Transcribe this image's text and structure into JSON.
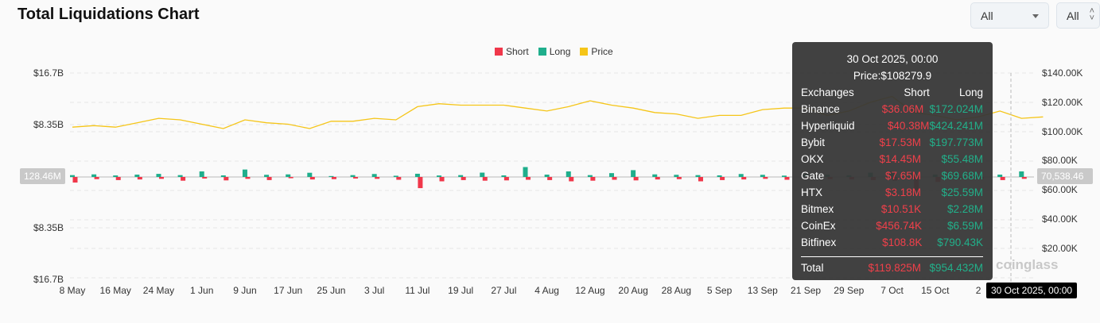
{
  "header": {
    "title": "Total Liquidations Chart",
    "select1": "All",
    "select2": "All"
  },
  "chart_data": {
    "type": "bar",
    "title": "Total Liquidations Chart",
    "legend": [
      "Short",
      "Long",
      "Price"
    ],
    "legend_placement": "top-center",
    "colors": {
      "short": "#f0374a",
      "long": "#1fae8c",
      "price": "#f5c518"
    },
    "left_axis_ticks": [
      "$16.7B",
      "$8.35B",
      "$8.35B",
      "$16.7B"
    ],
    "right_axis_ticks": [
      "$140.00K",
      "$120.00K",
      "$100.00K",
      "$80.00K",
      "$60.00K",
      "$40.00K",
      "$20.00K"
    ],
    "right_axis_range_k": [
      0,
      140
    ],
    "x_ticks": [
      "8 May",
      "16 May",
      "24 May",
      "1 Jun",
      "9 Jun",
      "17 Jun",
      "25 Jun",
      "3 Jul",
      "11 Jul",
      "19 Jul",
      "27 Jul",
      "4 Aug",
      "12 Aug",
      "20 Aug",
      "28 Aug",
      "5 Sep",
      "13 Sep",
      "21 Sep",
      "29 Sep",
      "7 Oct",
      "15 Oct",
      "2"
    ],
    "x_interval_days": 4,
    "price_k": [
      103,
      104,
      103,
      106,
      109,
      108,
      105,
      102,
      108,
      106,
      105,
      102,
      107,
      107,
      109,
      108,
      117,
      119,
      118,
      118,
      118,
      116,
      114,
      117,
      121,
      118,
      116,
      113,
      112,
      109,
      111,
      111,
      115,
      116,
      116,
      111,
      114,
      120,
      124,
      113,
      111,
      108,
      110,
      114,
      109,
      110
    ],
    "long_m": [
      300,
      420,
      250,
      380,
      500,
      300,
      900,
      260,
      1200,
      350,
      420,
      680,
      150,
      300,
      480,
      200,
      520,
      240,
      300,
      700,
      260,
      1600,
      380,
      900,
      300,
      620,
      1100,
      420,
      350,
      300,
      260,
      480,
      350,
      220,
      500,
      400,
      260,
      700,
      950,
      700,
      400,
      450,
      300,
      380,
      900,
      550
    ],
    "short_m": [
      900,
      350,
      500,
      400,
      300,
      600,
      250,
      550,
      300,
      500,
      200,
      400,
      350,
      250,
      300,
      450,
      1800,
      700,
      500,
      600,
      550,
      450,
      500,
      700,
      600,
      450,
      550,
      400,
      350,
      700,
      500,
      400,
      300,
      450,
      250,
      350,
      400,
      500,
      600,
      2200,
      800,
      400,
      350,
      500,
      300,
      400
    ],
    "crosshair": {
      "date": "30 Oct 2025, 00:00",
      "left_value": "128.46M",
      "right_value": "70,538.46"
    }
  },
  "tooltip": {
    "date": "30 Oct 2025, 00:00",
    "price": "Price:$108279.9",
    "headers": {
      "exchanges": "Exchanges",
      "short": "Short",
      "long": "Long"
    },
    "rows": [
      {
        "name": "Binance",
        "short": "$36.06M",
        "long": "$172.024M"
      },
      {
        "name": "Hyperliquid",
        "short": "$40.38M",
        "long": "$424.241M"
      },
      {
        "name": "Bybit",
        "short": "$17.53M",
        "long": "$197.773M"
      },
      {
        "name": "OKX",
        "short": "$14.45M",
        "long": "$55.48M"
      },
      {
        "name": "Gate",
        "short": "$7.65M",
        "long": "$69.68M"
      },
      {
        "name": "HTX",
        "short": "$3.18M",
        "long": "$25.59M"
      },
      {
        "name": "Bitmex",
        "short": "$10.51K",
        "long": "$2.28M"
      },
      {
        "name": "CoinEx",
        "short": "$456.74K",
        "long": "$6.59M"
      },
      {
        "name": "Bitfinex",
        "short": "$108.8K",
        "long": "$790.43K"
      }
    ],
    "total": {
      "name": "Total",
      "short": "$119.825M",
      "long": "$954.432M"
    }
  },
  "watermark": "coinglass"
}
